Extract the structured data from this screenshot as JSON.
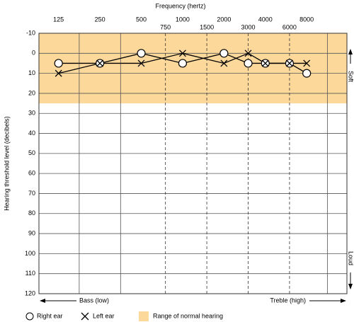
{
  "chart_data": {
    "type": "line",
    "title": "Frequency (hertz)",
    "y_label": "Hearing threshold level (decibels)",
    "soft_label": "Soft",
    "loud_label": "Loud",
    "bass_label": "Bass (low)",
    "treble_label": "Treble (high)",
    "x": [
      125,
      250,
      500,
      1000,
      2000,
      3000,
      4000,
      6000,
      8000
    ],
    "series": [
      {
        "name": "Right ear",
        "marker": "circle",
        "color": "#000000",
        "values": [
          5,
          5,
          0,
          5,
          0,
          5,
          5,
          5,
          10
        ]
      },
      {
        "name": "Left ear",
        "marker": "x",
        "color": "#000000",
        "values": [
          10,
          5,
          5,
          0,
          5,
          0,
          5,
          5,
          5
        ]
      }
    ],
    "band": {
      "name": "Range of normal hearing",
      "range": [
        -10,
        25
      ],
      "color": "#fcd89b"
    },
    "xscale": "log",
    "xlim": [
      90,
      15700
    ],
    "xticks": [
      125,
      250,
      500,
      1000,
      2000,
      4000,
      8000
    ],
    "xticks_minor": [
      750,
      1500,
      3000,
      6000
    ],
    "ylim": [
      120,
      -10
    ],
    "yticks": [
      -10,
      0,
      10,
      20,
      30,
      40,
      50,
      60,
      70,
      80,
      90,
      100,
      110,
      120
    ],
    "grid": true
  }
}
